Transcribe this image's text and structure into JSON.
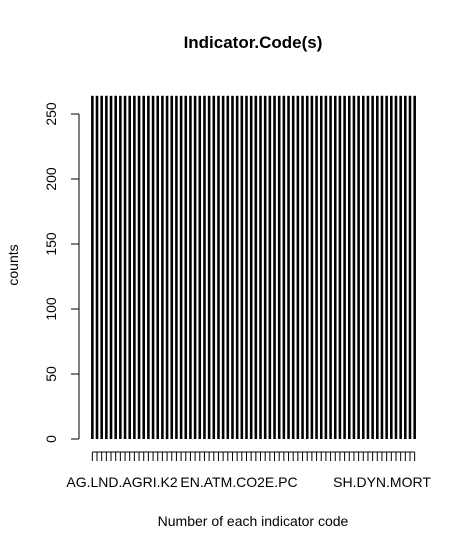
{
  "chart_data": {
    "type": "bar",
    "title": "Indicator.Code(s)",
    "xlabel": "Number of each indicator code",
    "ylabel": "counts",
    "ylim": [
      0,
      264
    ],
    "yticks": [
      0,
      50,
      100,
      150,
      200,
      250
    ],
    "grid": false,
    "legend": "none",
    "bar_color": "#000000",
    "bar_count": 70,
    "bar_value": 264,
    "visible_category_labels": [
      "AG.LND.AGRI.K2",
      "EN.ATM.CO2E.PC",
      "SH.DYN.MORT"
    ]
  }
}
